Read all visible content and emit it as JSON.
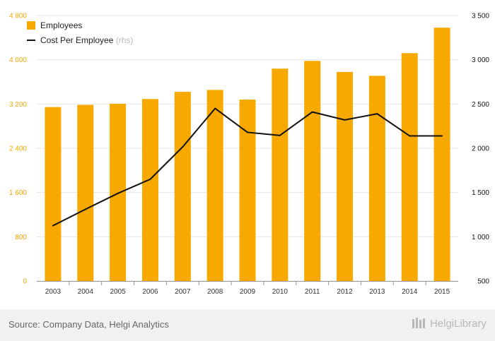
{
  "chart_data": {
    "type": "bar+line",
    "categories": [
      "2003",
      "2004",
      "2005",
      "2006",
      "2007",
      "2008",
      "2009",
      "2010",
      "2011",
      "2012",
      "2013",
      "2014",
      "2015"
    ],
    "series": [
      {
        "name": "Employees",
        "axis": "left",
        "type": "bar",
        "color": "#f7a900",
        "values": [
          3145,
          3185,
          3205,
          3290,
          3420,
          3455,
          3280,
          3840,
          3980,
          3780,
          3710,
          4120,
          4580
        ]
      },
      {
        "name": "Cost Per Employee",
        "axis": "right",
        "type": "line",
        "color": "#111111",
        "values": [
          1125,
          1310,
          1490,
          1650,
          2015,
          2450,
          2180,
          2145,
          2410,
          2320,
          2390,
          2140,
          2140
        ]
      }
    ],
    "legend": {
      "bar_label": "Employees",
      "line_label": "Cost Per Employee",
      "line_suffix": "(rhs)"
    },
    "y_left": {
      "min": 0,
      "max": 4800,
      "ticks": [
        "0",
        "800",
        "1 600",
        "2 400",
        "3 200",
        "4 000",
        "4 800"
      ]
    },
    "y_right": {
      "min": 500,
      "max": 3500,
      "ticks": [
        "500",
        "1 000",
        "1 500",
        "2 000",
        "2 500",
        "3 000",
        "3 500"
      ]
    },
    "grid": true,
    "legend_position": "top-left"
  },
  "footer": {
    "source": "Source: Company Data, Helgi Analytics",
    "brand": "HelgiLibrary"
  }
}
